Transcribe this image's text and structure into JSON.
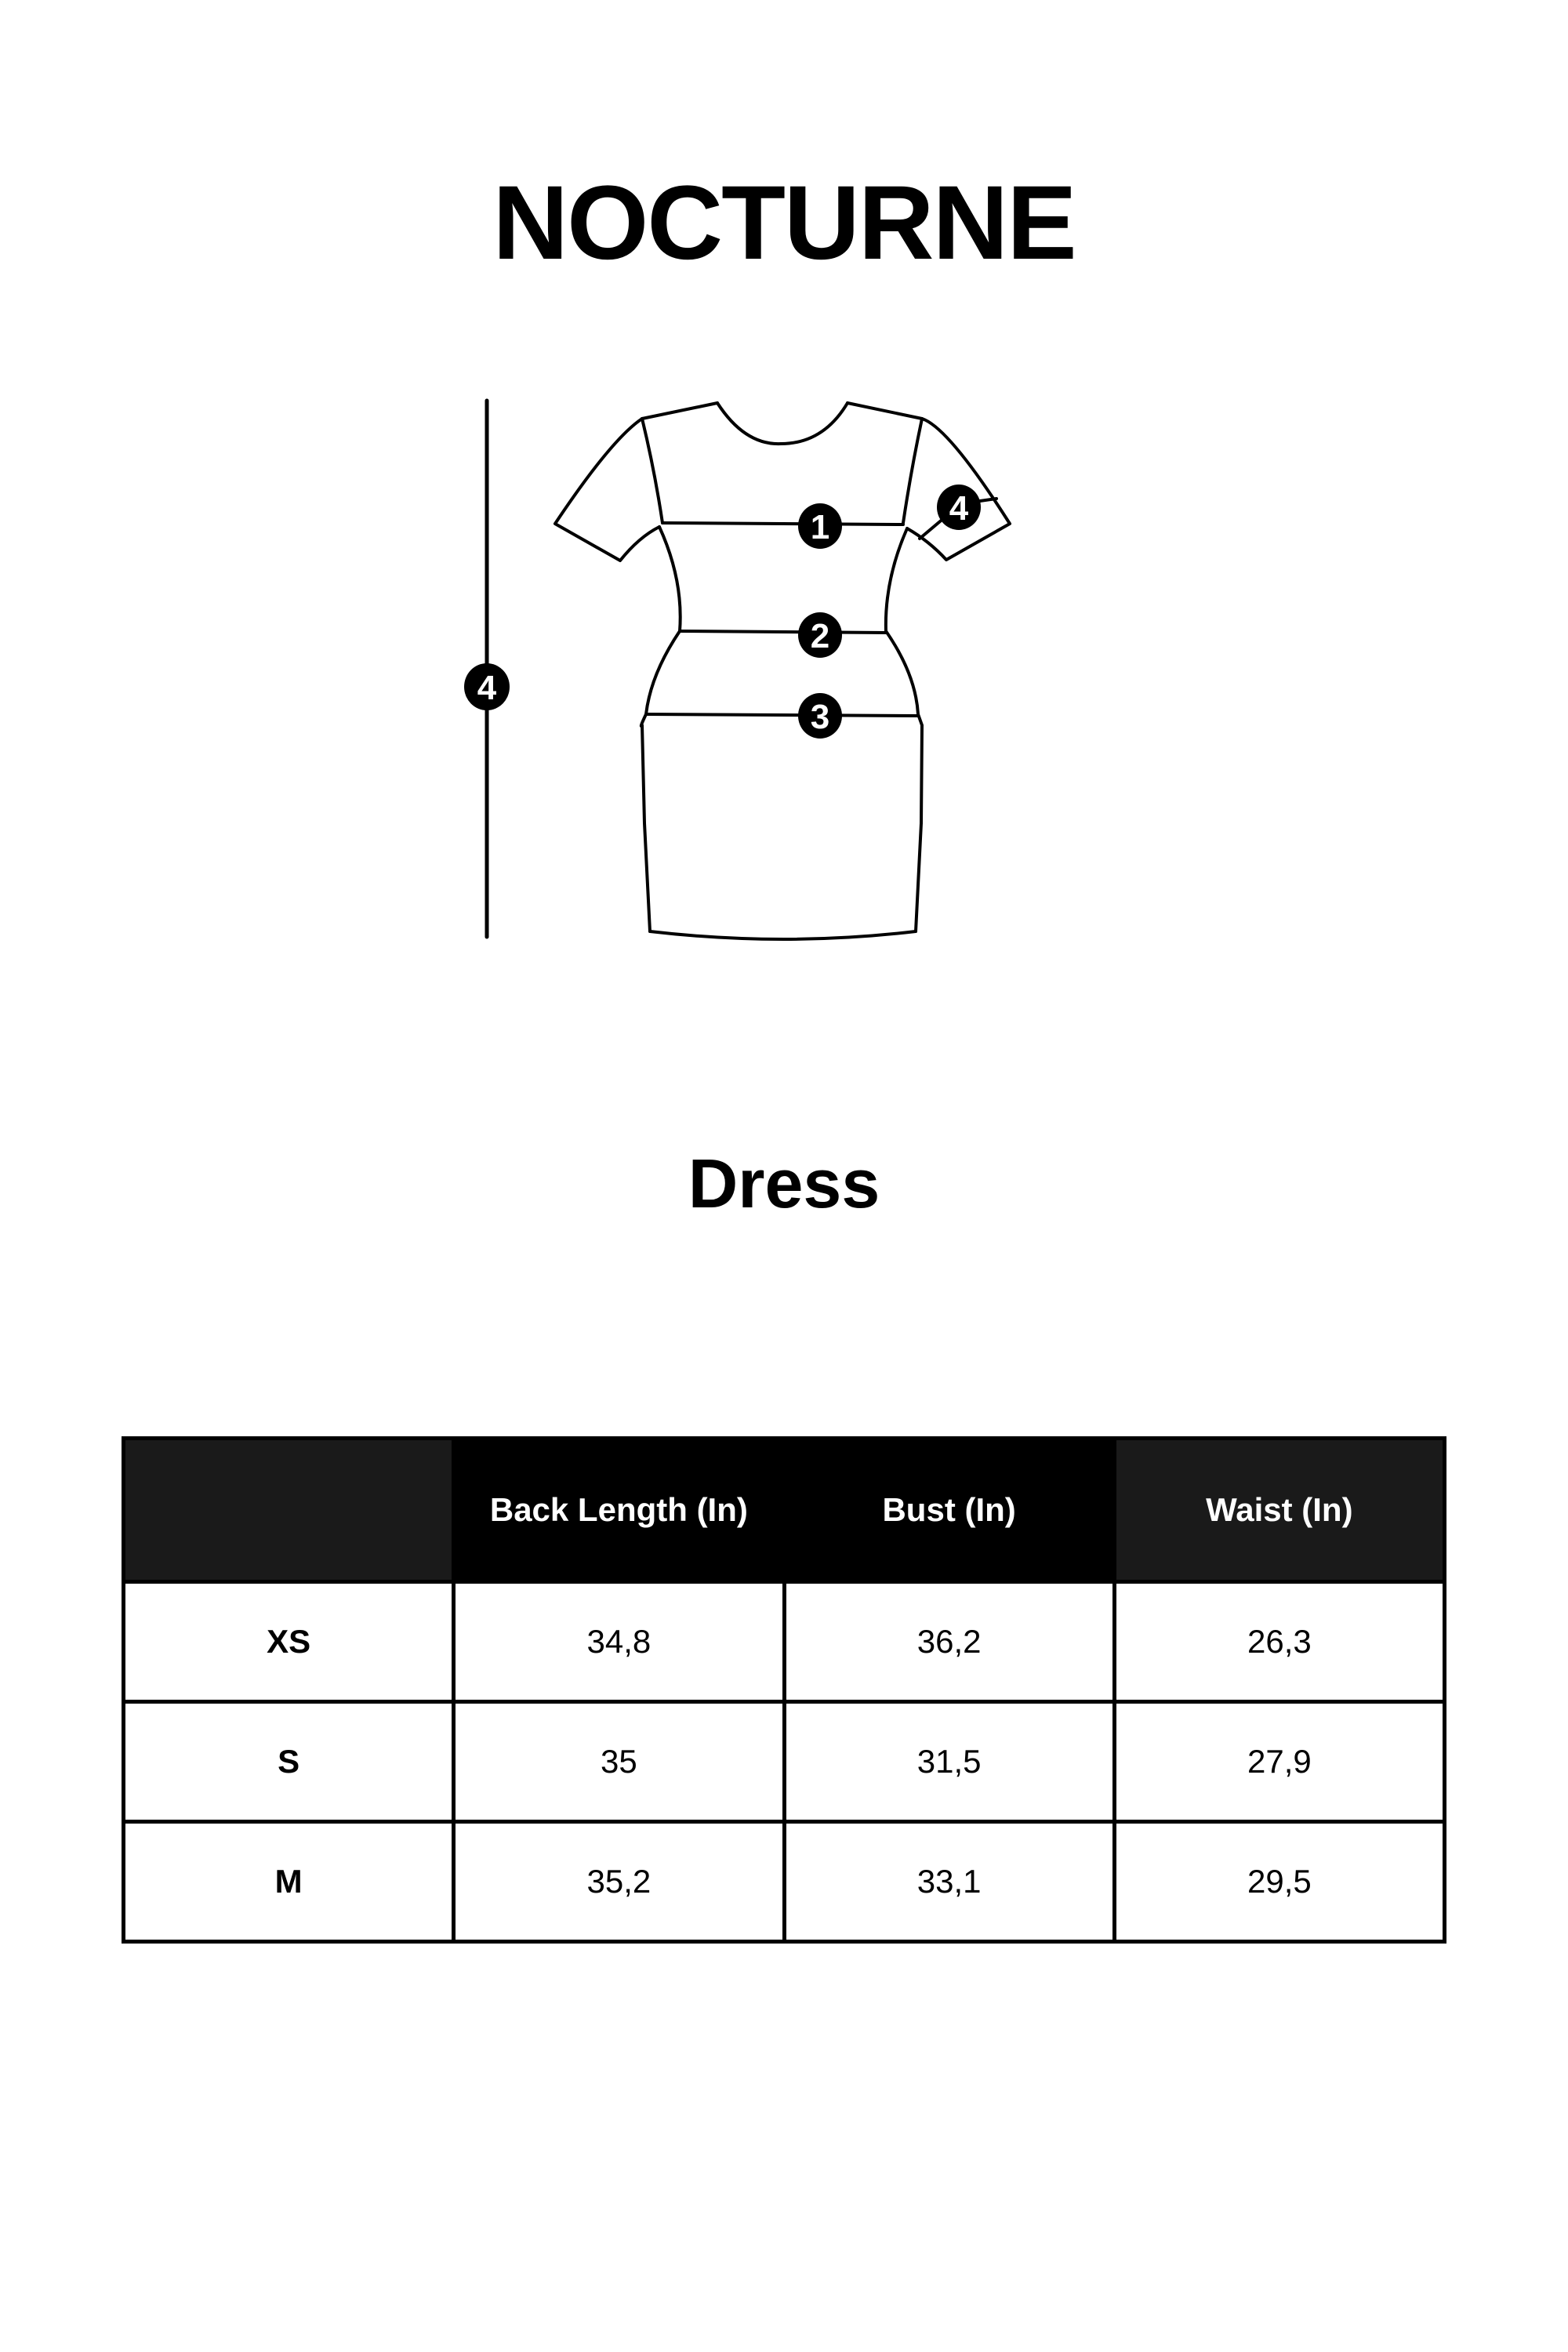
{
  "brand": "NOCTURNE",
  "product_type": "Dress",
  "diagram": {
    "markers": [
      "1",
      "2",
      "3",
      "4"
    ],
    "length_marker": "4",
    "sleeve_marker": "4"
  },
  "table": {
    "headers": [
      "",
      "Back Length (In)",
      "Bust (In)",
      "Waist (In)"
    ],
    "rows": [
      {
        "size": "XS",
        "back_length": "34,8",
        "bust": "36,2",
        "waist": "26,3"
      },
      {
        "size": "S",
        "back_length": "35",
        "bust": "31,5",
        "waist": "27,9"
      },
      {
        "size": "M",
        "back_length": "35,2",
        "bust": "33,1",
        "waist": "29,5"
      }
    ]
  },
  "colors": {
    "header_dark": "#000000",
    "header_soft": "#1a1a1a",
    "text": "#000000",
    "background": "#ffffff"
  }
}
